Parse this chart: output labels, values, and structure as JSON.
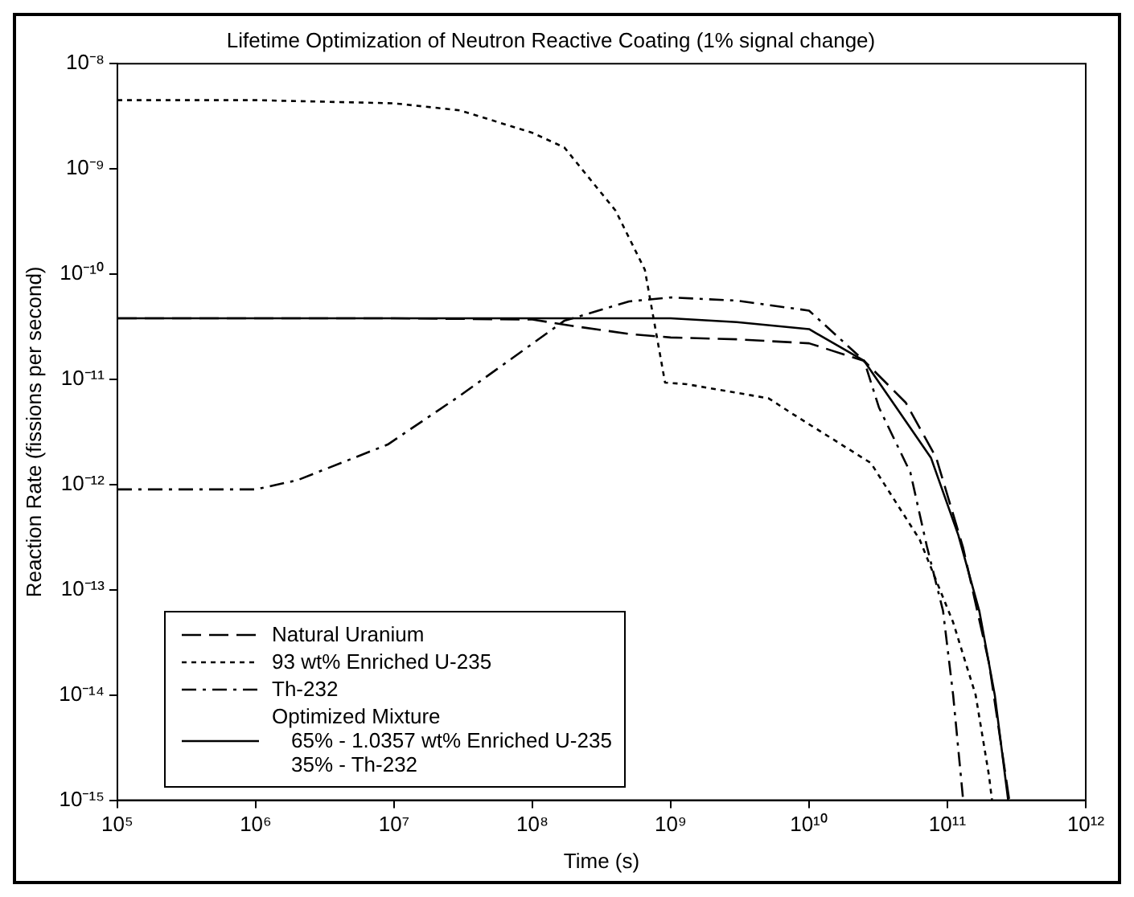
{
  "chart_data": {
    "type": "line",
    "title": "Lifetime Optimization of Neutron Reactive Coating (1% signal change)",
    "xlabel": "Time (s)",
    "ylabel": "Reaction Rate (fissions per second)",
    "log": "xy",
    "grid": false,
    "legend": "bottom left",
    "marker": "none",
    "xlim": [
      100000,
      1000000000000
    ],
    "ylim": [
      1e-15,
      1e-08
    ],
    "xticks": [
      {
        "value": 100000,
        "label": "10⁵"
      },
      {
        "value": 1000000,
        "label": "10⁶"
      },
      {
        "value": 10000000,
        "label": "10⁷"
      },
      {
        "value": 100000000,
        "label": "10⁸"
      },
      {
        "value": 1000000000,
        "label": "10⁹"
      },
      {
        "value": 10000000000,
        "label": "10¹⁰"
      },
      {
        "value": 100000000000,
        "label": "10¹¹"
      },
      {
        "value": 1000000000000,
        "label": "10¹²"
      }
    ],
    "yticks": [
      {
        "value": 1e-15,
        "label": "10⁻¹⁵"
      },
      {
        "value": 1e-14,
        "label": "10⁻¹⁴"
      },
      {
        "value": 1e-13,
        "label": "10⁻¹³"
      },
      {
        "value": 1e-12,
        "label": "10⁻¹²"
      },
      {
        "value": 1e-11,
        "label": "10⁻¹¹"
      },
      {
        "value": 1e-10,
        "label": "10⁻¹⁰"
      },
      {
        "value": 1e-09,
        "label": "10⁻⁹"
      },
      {
        "value": 1e-08,
        "label": "10⁻⁸"
      }
    ],
    "series": [
      {
        "name": "Natural Uranium",
        "color": "#000000",
        "line_style": "dashed",
        "x": [
          100000,
          1000000,
          10000000,
          100000000,
          200000000,
          500000000,
          1000000000,
          3000000000,
          10000000000,
          25000000000,
          50000000000,
          83000000000,
          130000000000,
          200000000000,
          280000000000
        ],
        "values": [
          3.8e-11,
          3.8e-11,
          3.8e-11,
          3.7e-11,
          3.2e-11,
          2.7e-11,
          2.5e-11,
          2.4e-11,
          2.2e-11,
          1.5e-11,
          6e-12,
          1.8e-12,
          2.5e-13,
          2e-14,
          1e-15
        ]
      },
      {
        "name": "93 wt% Enriched U-235",
        "color": "#000000",
        "line_style": "dotted",
        "x": [
          100000,
          1000000,
          10000000,
          30000000,
          100000000,
          170000000,
          400000000,
          650000000,
          910000000,
          1300000000,
          5100000000,
          7400000000,
          28000000000,
          63000000000,
          110000000000,
          160000000000,
          200000000000,
          210000000000
        ],
        "values": [
          4.5e-09,
          4.5e-09,
          4.2e-09,
          3.6e-09,
          2.2e-09,
          1.6e-09,
          4e-10,
          1.1e-10,
          9.3e-12,
          9e-12,
          6.6e-12,
          4.8e-12,
          1.6e-12,
          3e-13,
          4.9e-14,
          1e-14,
          1.7e-15,
          1e-15
        ]
      },
      {
        "name": "Th-232",
        "color": "#000000",
        "line_style": "dashdot",
        "x": [
          100000,
          1000000,
          2000000,
          9000000,
          30000000,
          170000000,
          500000000,
          1000000000,
          3000000000,
          10000000000,
          25000000000,
          32000000000,
          54000000000,
          71000000000,
          93000000000,
          110000000000,
          130000000000
        ],
        "values": [
          9e-13,
          9e-13,
          1.1e-12,
          2.4e-12,
          7e-12,
          3.6e-11,
          5.5e-11,
          6e-11,
          5.6e-11,
          4.5e-11,
          1.5e-11,
          5.4e-12,
          1.3e-12,
          2.6e-13,
          6.3e-14,
          1e-14,
          1e-15
        ]
      },
      {
        "name": "Optimized Mixture\n65% - 1.0357 wt% Enriched U-235\n35% - Th-232",
        "color": "#000000",
        "line_style": "solid",
        "x": [
          100000,
          1000000,
          10000000,
          100000000,
          1000000000,
          3000000000,
          10000000000,
          25000000000,
          76000000000,
          120000000000,
          170000000000,
          220000000000,
          275000000000
        ],
        "values": [
          3.8e-11,
          3.8e-11,
          3.8e-11,
          3.8e-11,
          3.8e-11,
          3.5e-11,
          3e-11,
          1.5e-11,
          1.8e-12,
          3.3e-13,
          6.3e-14,
          1e-14,
          1e-15
        ]
      }
    ]
  }
}
